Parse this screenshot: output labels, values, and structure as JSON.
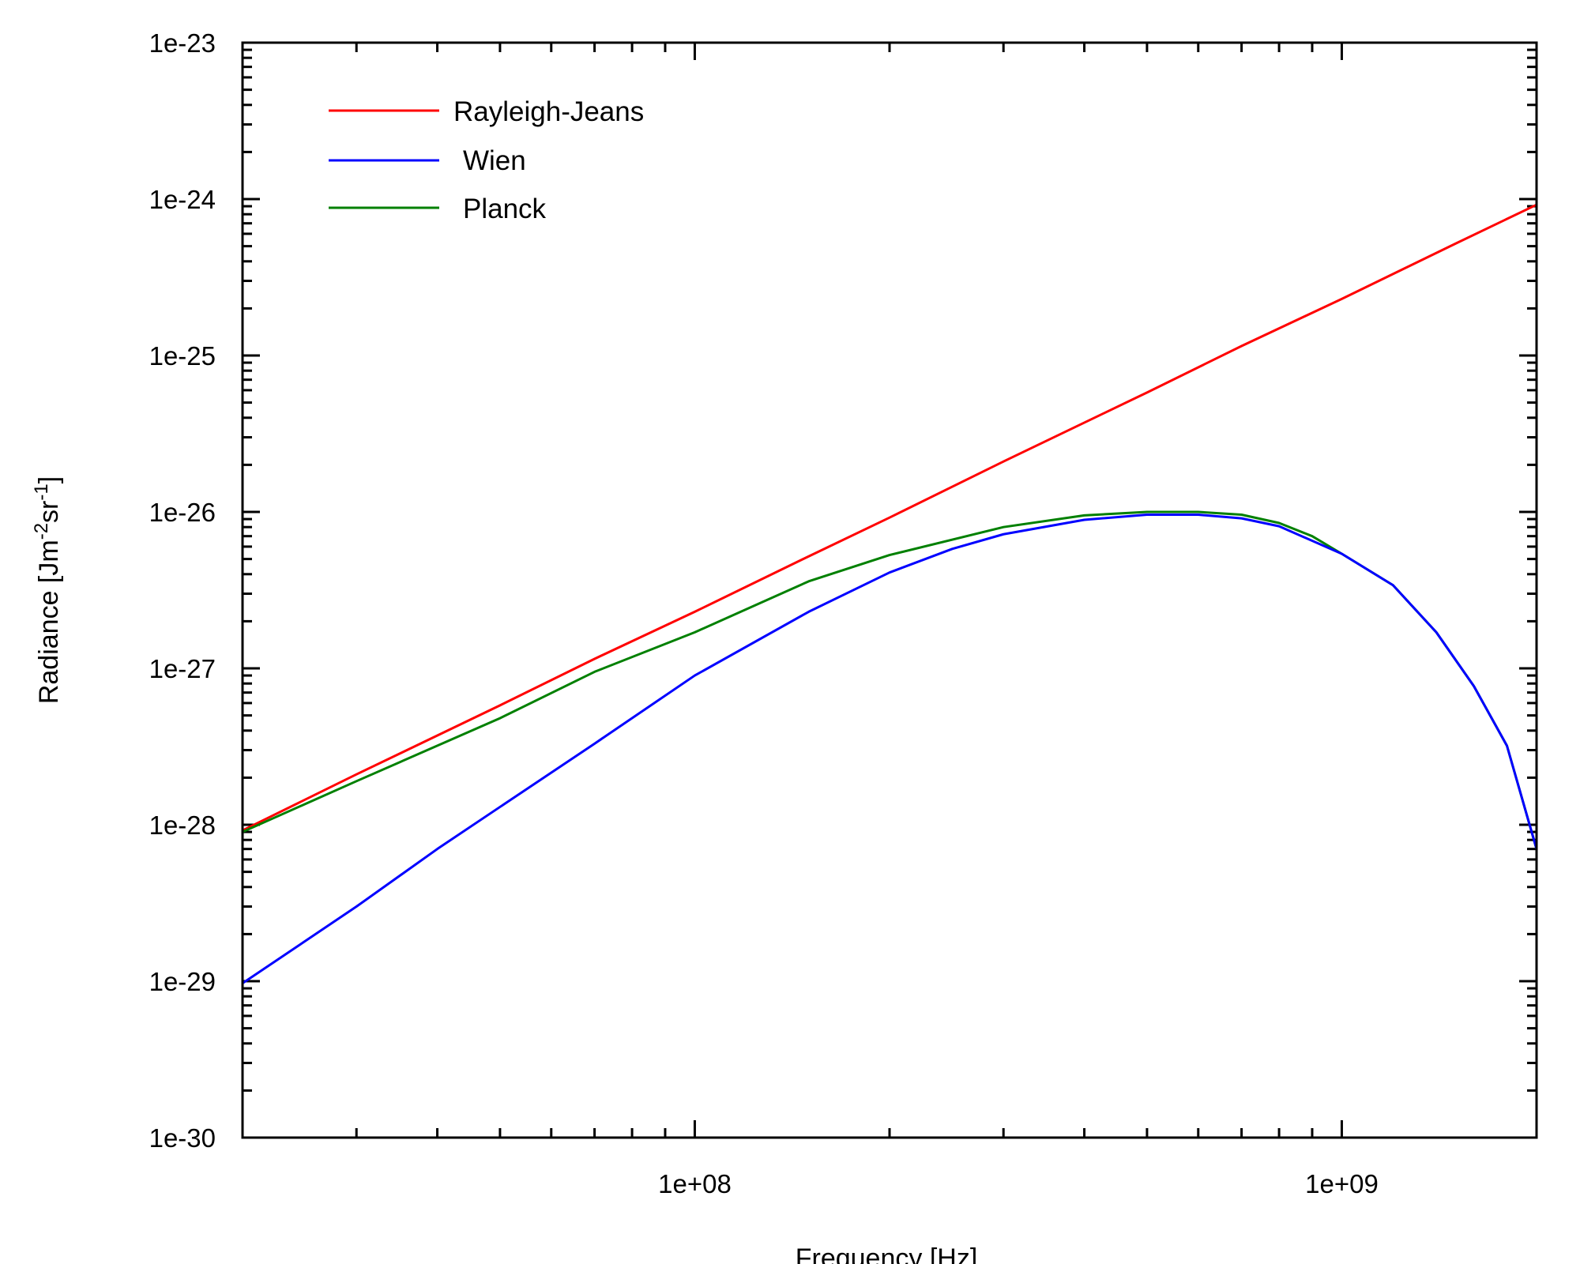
{
  "chart_data": {
    "type": "line",
    "title": "",
    "xlabel": "Frequency [Hz]",
    "ylabel": {
      "prefix": "Radiance [Jm",
      "exp1": "-2",
      "mid": "sr",
      "exp2": "-1",
      "suffix": "]"
    },
    "xscale": "log",
    "yscale": "log",
    "xlim": [
      20000000,
      2000000000
    ],
    "ylim": [
      1e-30,
      1e-23
    ],
    "x_ticks": [
      {
        "value": 100000000,
        "label": "1e+08"
      },
      {
        "value": 1000000000,
        "label": "1e+09"
      }
    ],
    "y_ticks": [
      {
        "value": 1e-30,
        "label": "1e-30"
      },
      {
        "value": 1e-29,
        "label": "1e-29"
      },
      {
        "value": 1e-28,
        "label": "1e-28"
      },
      {
        "value": 1e-27,
        "label": "1e-27"
      },
      {
        "value": 1e-26,
        "label": "1e-26"
      },
      {
        "value": 1e-25,
        "label": "1e-25"
      },
      {
        "value": 1e-24,
        "label": "1e-24"
      },
      {
        "value": 1e-23,
        "label": "1e-23"
      }
    ],
    "grid": false,
    "legend_position": "top-left",
    "series": [
      {
        "name": "Rayleigh-Jeans",
        "color": "#ff0000",
        "points": [
          [
            20000000,
            9.2e-29
          ],
          [
            30000000,
            2.1e-28
          ],
          [
            50000000,
            5.8e-28
          ],
          [
            70000000,
            1.15e-27
          ],
          [
            100000000,
            2.3e-27
          ],
          [
            150000000,
            5.2e-27
          ],
          [
            200000000,
            9.2e-27
          ],
          [
            300000000,
            2.1e-26
          ],
          [
            500000000,
            5.8e-26
          ],
          [
            700000000,
            1.15e-25
          ],
          [
            1000000000,
            2.3e-25
          ],
          [
            1500000000,
            5.2e-25
          ],
          [
            2000000000,
            9.2e-25
          ]
        ]
      },
      {
        "name": "Wien",
        "color": "#0000ff",
        "points": [
          [
            20000000,
            9.7e-30
          ],
          [
            30000000,
            3e-29
          ],
          [
            40000000,
            7e-29
          ],
          [
            50000000,
            1.3e-28
          ],
          [
            70000000,
            3.3e-28
          ],
          [
            100000000,
            9e-28
          ],
          [
            150000000,
            2.3e-27
          ],
          [
            200000000,
            4.1e-27
          ],
          [
            250000000,
            5.8e-27
          ],
          [
            300000000,
            7.2e-27
          ],
          [
            400000000,
            8.9e-27
          ],
          [
            500000000,
            9.6e-27
          ],
          [
            600000000,
            9.6e-27
          ],
          [
            700000000,
            9.1e-27
          ],
          [
            800000000,
            8.1e-27
          ],
          [
            1000000000,
            5.4e-27
          ],
          [
            1200000000,
            3.4e-27
          ],
          [
            1400000000,
            1.7e-27
          ],
          [
            1600000000,
            7.7e-28
          ],
          [
            1800000000,
            3.2e-28
          ],
          [
            2000000000,
            7e-29
          ]
        ]
      },
      {
        "name": "Planck",
        "color": "#008000",
        "points": [
          [
            20000000,
            9e-29
          ],
          [
            30000000,
            1.9e-28
          ],
          [
            50000000,
            4.8e-28
          ],
          [
            70000000,
            9.5e-28
          ],
          [
            100000000,
            1.7e-27
          ],
          [
            150000000,
            3.6e-27
          ],
          [
            200000000,
            5.3e-27
          ],
          [
            300000000,
            8e-27
          ],
          [
            400000000,
            9.5e-27
          ],
          [
            500000000,
            1e-26
          ],
          [
            600000000,
            1e-26
          ],
          [
            700000000,
            9.6e-27
          ],
          [
            800000000,
            8.5e-27
          ],
          [
            900000000,
            7e-27
          ],
          [
            1000000000,
            5.4e-27
          ],
          [
            1200000000,
            3.4e-27
          ],
          [
            1400000000,
            1.7e-27
          ],
          [
            1600000000,
            7.7e-28
          ],
          [
            1800000000,
            3.2e-28
          ],
          [
            2000000000,
            7e-29
          ]
        ]
      }
    ]
  }
}
